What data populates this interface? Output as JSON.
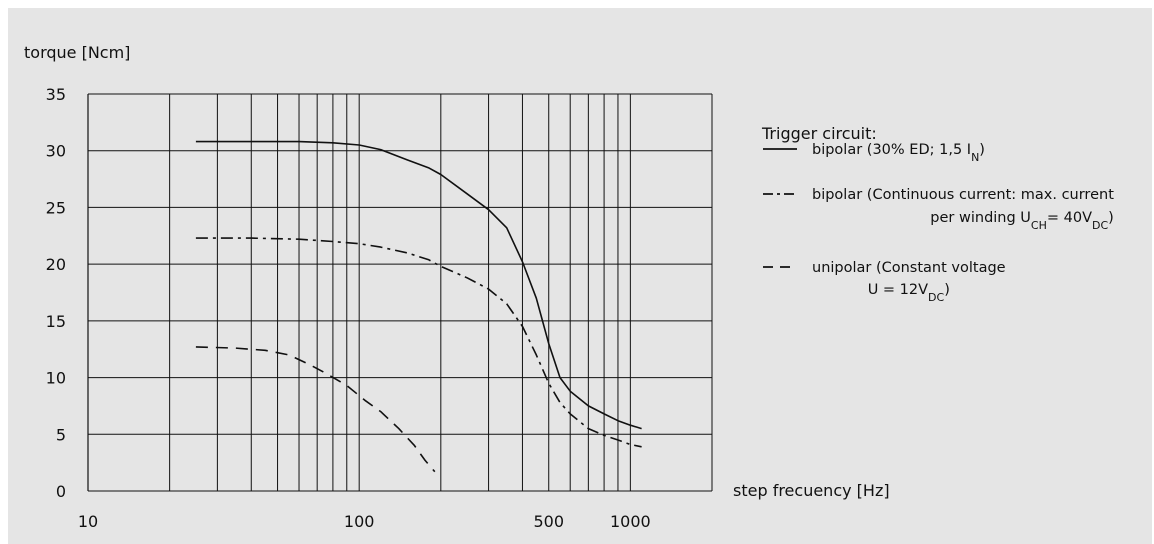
{
  "chart_data": {
    "type": "line",
    "ylabel": "torque [Ncm]",
    "xlabel": "step frecuency [Hz]",
    "x_scale": "log",
    "xlim": [
      10,
      2000
    ],
    "ylim": [
      0,
      35
    ],
    "grid": true,
    "x_ticks": [
      {
        "value": 10,
        "label": "10"
      },
      {
        "value": 100,
        "label": "100"
      },
      {
        "value": 500,
        "label": "500"
      },
      {
        "value": 1000,
        "label": "1000"
      }
    ],
    "x_gridlines": [
      20,
      30,
      40,
      50,
      60,
      70,
      80,
      90,
      100,
      200,
      300,
      400,
      500,
      600,
      700,
      800,
      900,
      1000,
      2000
    ],
    "y_ticks": [
      0,
      5,
      10,
      15,
      20,
      25,
      30,
      35
    ],
    "legend_title": "Trigger circuit:",
    "legend_position": "right",
    "series": [
      {
        "name": "bipolar (30% ED; 1,5 I_N)",
        "label_parts": [
          {
            "t": "bipolar (30% ED; 1,5 I",
            "sub": false
          },
          {
            "t": "N",
            "sub": true
          },
          {
            "t": ")",
            "sub": false
          }
        ],
        "style": "solid",
        "x": [
          25,
          40,
          60,
          80,
          100,
          120,
          150,
          180,
          200,
          250,
          300,
          350,
          400,
          450,
          500,
          550,
          600,
          700,
          800,
          900,
          1000,
          1100
        ],
        "y": [
          30.8,
          30.8,
          30.8,
          30.7,
          30.5,
          30.1,
          29.2,
          28.5,
          27.9,
          26.2,
          24.8,
          23.2,
          20.2,
          17,
          13,
          10,
          8.8,
          7.5,
          6.8,
          6.2,
          5.8,
          5.5
        ]
      },
      {
        "name": "bipolar (Continuous current: max. current per winding U_CH= 40V_DC)",
        "label_parts": [
          {
            "t": "bipolar (Continuous current: max. current",
            "sub": false
          }
        ],
        "label_parts_2": [
          {
            "t": "per winding U",
            "sub": false
          },
          {
            "t": "CH",
            "sub": true
          },
          {
            "t": "= 40V",
            "sub": false
          },
          {
            "t": "DC",
            "sub": true
          },
          {
            "t": ")",
            "sub": false
          }
        ],
        "style": "dashdot",
        "x": [
          25,
          40,
          60,
          80,
          100,
          120,
          150,
          180,
          200,
          250,
          300,
          350,
          400,
          450,
          500,
          550,
          600,
          700,
          800,
          900,
          1000,
          1100
        ],
        "y": [
          22.3,
          22.3,
          22.2,
          22.0,
          21.8,
          21.5,
          21.0,
          20.4,
          19.8,
          18.8,
          17.8,
          16.5,
          14.5,
          12,
          9.5,
          7.8,
          6.8,
          5.5,
          4.9,
          4.5,
          4.1,
          3.9
        ]
      },
      {
        "name": "unipolar (Constant voltage U = 12V_DC)",
        "label_parts": [
          {
            "t": "unipolar (Constant voltage",
            "sub": false
          }
        ],
        "label_parts_2": [
          {
            "t": "U = 12V",
            "sub": false
          },
          {
            "t": "DC",
            "sub": true
          },
          {
            "t": ")",
            "sub": false
          }
        ],
        "style": "dashed",
        "x": [
          25,
          35,
          45,
          55,
          65,
          75,
          90,
          105,
          120,
          140,
          160,
          175,
          190
        ],
        "y": [
          12.7,
          12.6,
          12.4,
          12.0,
          11.2,
          10.4,
          9.3,
          8.0,
          7.0,
          5.5,
          4.0,
          2.7,
          1.7
        ]
      }
    ]
  }
}
